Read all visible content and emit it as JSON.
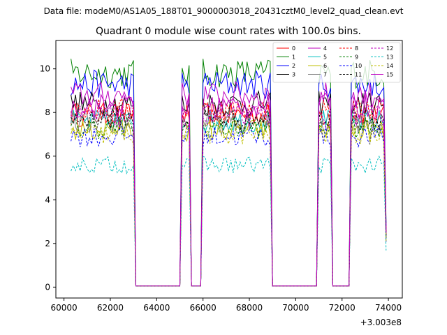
{
  "chart_data": {
    "type": "line",
    "suptitle": "Data file: modeM0/AS1A05_188T01_9000003018_20431cztM0_level2_quad_clean.evt",
    "title": "Quadrant 0 module wise count rates with 100.0s bins.",
    "xlabel": "",
    "ylabel": "",
    "x_offset_label": "+3.003e8",
    "xlim": [
      59650,
      74600
    ],
    "ylim": [
      -0.5,
      11.3
    ],
    "x_ticks": [
      60000,
      62000,
      64000,
      66000,
      68000,
      70000,
      72000,
      74000
    ],
    "x_tick_labels": [
      "60000",
      "62000",
      "64000",
      "66000",
      "68000",
      "70000",
      "72000",
      "74000"
    ],
    "y_ticks": [
      0,
      2,
      4,
      6,
      8,
      10
    ],
    "y_tick_labels": [
      "0",
      "2",
      "4",
      "6",
      "8",
      "10"
    ],
    "legend_position": "top-right",
    "segments": [
      {
        "start": 60300,
        "end": 63000,
        "drop_to": 63100
      },
      {
        "start": 65100,
        "end": 65400,
        "drop_to": 65500
      },
      {
        "start": 66000,
        "end": 68900,
        "drop_to": 69000
      },
      {
        "start": 71000,
        "end": 71500,
        "drop_to": 71600
      },
      {
        "start": 72400,
        "end": 73800,
        "drop_to": 73900
      }
    ],
    "series": [
      {
        "name": "0",
        "color": "#ff0000",
        "dash": false,
        "level": 7.9
      },
      {
        "name": "1",
        "color": "#008000",
        "dash": false,
        "level": 9.8
      },
      {
        "name": "2",
        "color": "#0000ff",
        "dash": false,
        "level": 9.3
      },
      {
        "name": "3",
        "color": "#000000",
        "dash": false,
        "level": 8.4
      },
      {
        "name": "4",
        "color": "#bf00bf",
        "dash": false,
        "level": 8.8
      },
      {
        "name": "5",
        "color": "#00bfbf",
        "dash": false,
        "level": 7.6
      },
      {
        "name": "6",
        "color": "#bfbf00",
        "dash": false,
        "level": 7.2
      },
      {
        "name": "7",
        "color": "#808080",
        "dash": false,
        "level": 7.5
      },
      {
        "name": "8",
        "color": "#ff0000",
        "dash": true,
        "level": 8.1
      },
      {
        "name": "9",
        "color": "#008000",
        "dash": true,
        "level": 7.3
      },
      {
        "name": "10",
        "color": "#0000ff",
        "dash": true,
        "level": 6.9
      },
      {
        "name": "11",
        "color": "#000000",
        "dash": true,
        "level": 7.7
      },
      {
        "name": "12",
        "color": "#bf00bf",
        "dash": true,
        "level": 7.8
      },
      {
        "name": "13",
        "color": "#00bfbf",
        "dash": true,
        "level": 5.6
      },
      {
        "name": "14",
        "color": "#bfbf00",
        "dash": true,
        "level": 7.0
      },
      {
        "name": "15",
        "color": "#bf00bf",
        "dash": false,
        "level": 8.3
      }
    ]
  }
}
